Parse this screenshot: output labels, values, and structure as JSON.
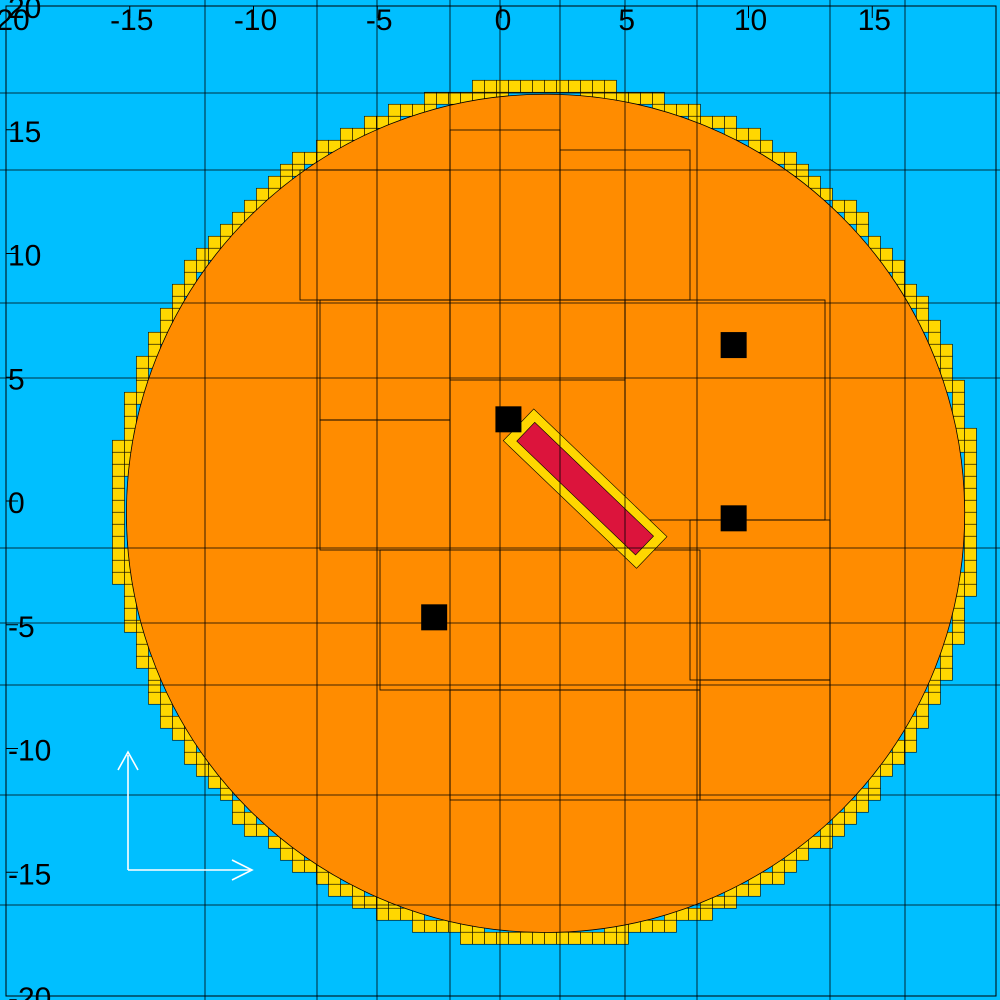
{
  "colors": {
    "background": "#00BFFF",
    "disc": "#FF8C00",
    "rim": "#FFD700",
    "core": "#DC143C",
    "markers": "#000000",
    "grid_lines": "#000000",
    "arrows": "#FFFFFF"
  },
  "axes": {
    "x_range": [
      -20,
      20
    ],
    "y_range": [
      -20,
      20
    ],
    "x_ticks": [
      "-20",
      "-15",
      "-10",
      "-5",
      "0",
      "5",
      "10",
      "15"
    ],
    "y_ticks": [
      "20",
      "15",
      "10",
      "5",
      "0",
      "-5",
      "-10",
      "-15",
      "-20"
    ]
  },
  "regions": {
    "disc": {
      "center": [
        1.8,
        -0.5
      ],
      "radius": 17.5
    },
    "core": {
      "from": [
        1.0,
        2.8
      ],
      "to": [
        5.8,
        -1.8
      ]
    },
    "markers": [
      [
        0.3,
        3.3
      ],
      [
        9.4,
        6.3
      ],
      [
        9.4,
        -0.7
      ],
      [
        -2.7,
        -4.7
      ]
    ]
  },
  "icons": {
    "axis_arrows": "coordinate-arrows-icon"
  }
}
